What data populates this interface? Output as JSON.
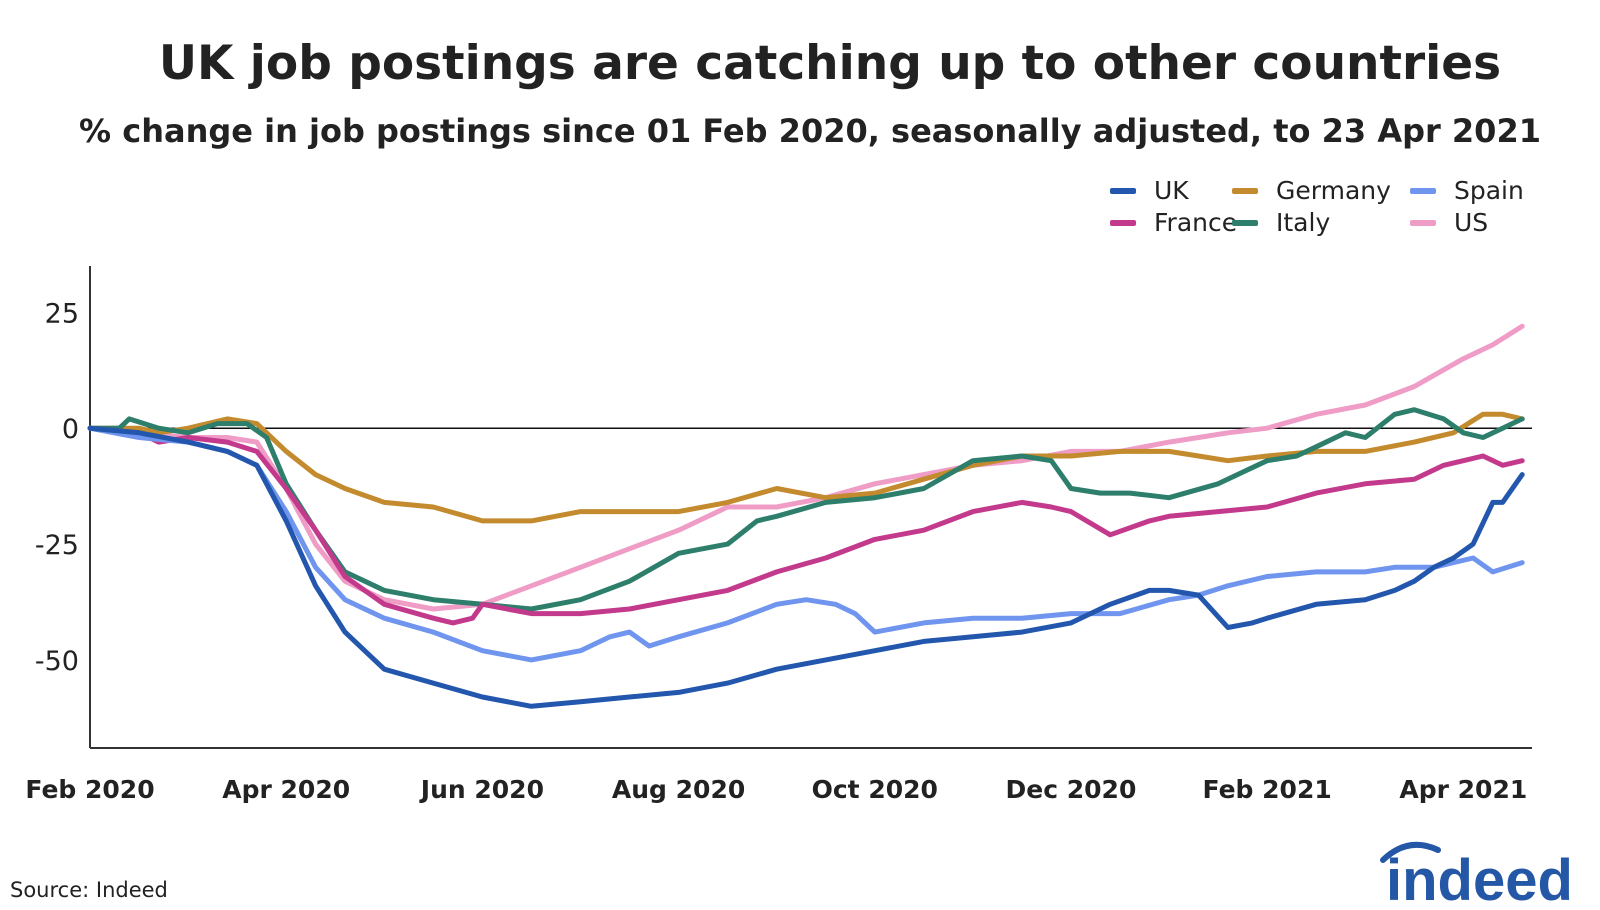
{
  "title": "UK job postings are catching up to other countries",
  "subtitle": "% change in job postings since 01 Feb 2020, seasonally adjusted, to 23 Apr 2021",
  "source": "Source: Indeed",
  "logo_text": "indeed",
  "colors": {
    "UK": "#2257ad",
    "France": "#c33a8c",
    "Spain": "#6f95ee",
    "Germany": "#c38b2d",
    "Italy": "#2d7e6b",
    "US": "#ef9cc6",
    "logo": "#2557a7"
  },
  "chart_data": {
    "type": "line",
    "title": "UK job postings are catching up to other countries",
    "subtitle": "% change in job postings since 01 Feb 2020, seasonally adjusted, to 23 Apr 2021",
    "xlabel": "",
    "ylabel": "",
    "xlim": [
      0,
      14.7
    ],
    "ylim": [
      -69,
      35
    ],
    "y_ticks": [
      25,
      0,
      -25,
      -50
    ],
    "y_tick_labels": [
      "25",
      "0",
      "-25",
      "-50"
    ],
    "x_ticks": [
      0,
      2,
      4,
      6,
      8,
      10,
      12,
      14
    ],
    "x_tick_labels": [
      "Feb 2020",
      "Apr 2020",
      "Jun 2020",
      "Aug 2020",
      "Oct 2020",
      "Dec 2020",
      "Feb 2021",
      "Apr 2021"
    ],
    "zero_line": true,
    "grid": false,
    "legend_position": "top-right",
    "x_note": "x values are months since 01 Feb 2020",
    "series": [
      {
        "name": "UK",
        "x": [
          0,
          0.5,
          1,
          1.4,
          1.7,
          2,
          2.3,
          2.6,
          3,
          3.5,
          4,
          4.5,
          5,
          5.5,
          6,
          6.5,
          7,
          7.5,
          8,
          8.5,
          9,
          9.5,
          10,
          10.4,
          10.8,
          11,
          11.3,
          11.6,
          11.85,
          12,
          12.5,
          13,
          13.3,
          13.5,
          13.7,
          13.9,
          14.1,
          14.3,
          14.4,
          14.6
        ],
        "y": [
          0,
          -1,
          -3,
          -5,
          -8,
          -20,
          -34,
          -44,
          -52,
          -55,
          -58,
          -60,
          -59,
          -58,
          -57,
          -55,
          -52,
          -50,
          -48,
          -46,
          -45,
          -44,
          -42,
          -38,
          -35,
          -35,
          -36,
          -43,
          -42,
          -41,
          -38,
          -37,
          -35,
          -33,
          -30,
          -28,
          -25,
          -16,
          -16,
          -10
        ]
      },
      {
        "name": "France",
        "x": [
          0,
          0.5,
          0.7,
          1,
          1.4,
          1.7,
          2,
          2.3,
          2.6,
          3,
          3.5,
          3.7,
          3.9,
          4,
          4.5,
          5,
          5.5,
          6,
          6.5,
          7,
          7.5,
          8,
          8.5,
          9,
          9.5,
          9.8,
          10,
          10.4,
          10.8,
          11,
          11.5,
          12,
          12.5,
          13,
          13.5,
          13.8,
          14,
          14.2,
          14.4,
          14.6
        ],
        "y": [
          0,
          -1,
          -3,
          -2,
          -3,
          -5,
          -13,
          -22,
          -32,
          -38,
          -41,
          -42,
          -41,
          -38,
          -40,
          -40,
          -39,
          -37,
          -35,
          -31,
          -28,
          -24,
          -22,
          -18,
          -16,
          -17,
          -18,
          -23,
          -20,
          -19,
          -18,
          -17,
          -14,
          -12,
          -11,
          -8,
          -7,
          -6,
          -8,
          -7
        ]
      },
      {
        "name": "Spain",
        "x": [
          0,
          0.5,
          1,
          1.4,
          1.7,
          2,
          2.3,
          2.6,
          3,
          3.5,
          4,
          4.5,
          5,
          5.3,
          5.5,
          5.7,
          6,
          6.5,
          7,
          7.3,
          7.6,
          7.8,
          8,
          8.5,
          9,
          9.5,
          10,
          10.5,
          11,
          11.3,
          11.6,
          12,
          12.5,
          13,
          13.3,
          13.5,
          13.7,
          13.9,
          14.1,
          14.3,
          14.6
        ],
        "y": [
          0,
          -2,
          -3,
          -5,
          -8,
          -18,
          -30,
          -37,
          -41,
          -44,
          -48,
          -50,
          -48,
          -45,
          -44,
          -47,
          -45,
          -42,
          -38,
          -37,
          -38,
          -40,
          -44,
          -42,
          -41,
          -41,
          -40,
          -40,
          -37,
          -36,
          -34,
          -32,
          -31,
          -31,
          -30,
          -30,
          -30,
          -29,
          -28,
          -31,
          -29
        ]
      },
      {
        "name": "Germany",
        "x": [
          0,
          0.5,
          0.7,
          1,
          1.4,
          1.7,
          2,
          2.3,
          2.6,
          3,
          3.5,
          4,
          4.5,
          5,
          5.5,
          6,
          6.5,
          7,
          7.5,
          8,
          8.5,
          9,
          9.5,
          10,
          10.5,
          11,
          11.3,
          11.6,
          12,
          12.5,
          13,
          13.5,
          13.9,
          14.2,
          14.4,
          14.6
        ],
        "y": [
          0,
          0,
          -1,
          0,
          2,
          1,
          -5,
          -10,
          -13,
          -16,
          -17,
          -20,
          -20,
          -18,
          -18,
          -18,
          -16,
          -13,
          -15,
          -14,
          -11,
          -8,
          -6,
          -6,
          -5,
          -5,
          -6,
          -7,
          -6,
          -5,
          -5,
          -3,
          -1,
          3,
          3,
          2
        ]
      },
      {
        "name": "Italy",
        "x": [
          0,
          0.3,
          0.4,
          0.7,
          1,
          1.3,
          1.6,
          1.8,
          2,
          2.3,
          2.6,
          3,
          3.5,
          4,
          4.5,
          5,
          5.5,
          6,
          6.5,
          6.8,
          7,
          7.5,
          8,
          8.5,
          9,
          9.5,
          9.8,
          10,
          10.3,
          10.6,
          11,
          11.5,
          11.8,
          12,
          12.3,
          12.5,
          12.8,
          13,
          13.3,
          13.5,
          13.8,
          14,
          14.2,
          14.4,
          14.6
        ],
        "y": [
          0,
          0,
          2,
          0,
          -1,
          1,
          1,
          -2,
          -12,
          -22,
          -31,
          -35,
          -37,
          -38,
          -39,
          -37,
          -33,
          -27,
          -25,
          -20,
          -19,
          -16,
          -15,
          -13,
          -7,
          -6,
          -7,
          -13,
          -14,
          -14,
          -15,
          -12,
          -9,
          -7,
          -6,
          -4,
          -1,
          -2,
          3,
          4,
          2,
          -1,
          -2,
          0,
          2
        ]
      },
      {
        "name": "US",
        "x": [
          0,
          0.5,
          1,
          1.4,
          1.7,
          2,
          2.3,
          2.6,
          3,
          3.5,
          4,
          4.5,
          5,
          5.5,
          6,
          6.5,
          7,
          7.5,
          8,
          8.5,
          9,
          9.5,
          10,
          10.5,
          11,
          11.3,
          11.6,
          12,
          12.5,
          13,
          13.5,
          14,
          14.3,
          14.6
        ],
        "y": [
          0,
          -1,
          -2,
          -2,
          -3,
          -13,
          -25,
          -33,
          -37,
          -39,
          -38,
          -34,
          -30,
          -26,
          -22,
          -17,
          -17,
          -15,
          -12,
          -10,
          -8,
          -7,
          -5,
          -5,
          -3,
          -2,
          -1,
          0,
          3,
          5,
          9,
          15,
          18,
          22
        ]
      }
    ]
  }
}
